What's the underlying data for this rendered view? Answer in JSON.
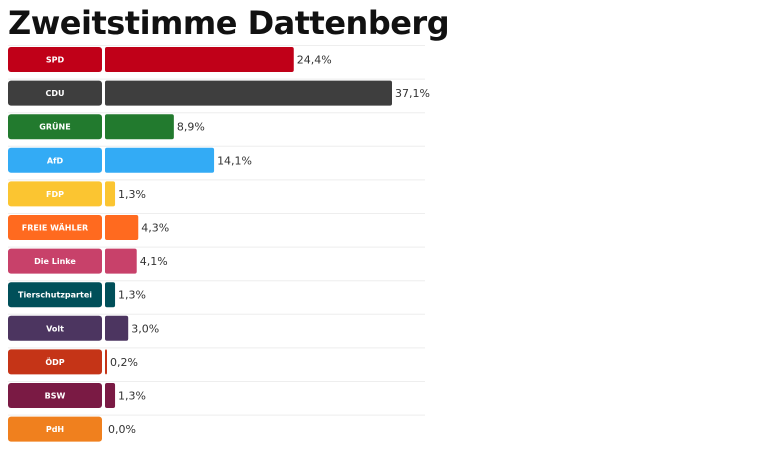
{
  "chart_data": {
    "type": "bar",
    "orientation": "horizontal",
    "title": "Zweitstimme Dattenberg",
    "categories": [
      "SPD",
      "CDU",
      "GRÜNE",
      "AfD",
      "FDP",
      "FREIE WÄHLER",
      "Die Linke",
      "Tierschutzpartei",
      "Volt",
      "ÖDP",
      "BSW",
      "PdH"
    ],
    "values": [
      24.4,
      37.1,
      8.9,
      14.1,
      1.3,
      4.3,
      4.1,
      1.3,
      3.0,
      0.2,
      1.3,
      0.0
    ],
    "value_labels": [
      "24,4%",
      "37,1%",
      "8,9%",
      "14,1%",
      "1,3%",
      "4,3%",
      "4,1%",
      "1,3%",
      "3,0%",
      "0,2%",
      "1,3%",
      "0,0%"
    ],
    "colors": [
      "#c00018",
      "#3e3e3e",
      "#227a2e",
      "#33abf5",
      "#fbc531",
      "#ff6a1f",
      "#c8416a",
      "#004f59",
      "#4c3560",
      "#c53417",
      "#7a1a44",
      "#f0801e"
    ],
    "unit": "%",
    "xlabel": "",
    "ylabel": "",
    "xlim": [
      0,
      37.1
    ],
    "grid": false,
    "legend": "none"
  }
}
